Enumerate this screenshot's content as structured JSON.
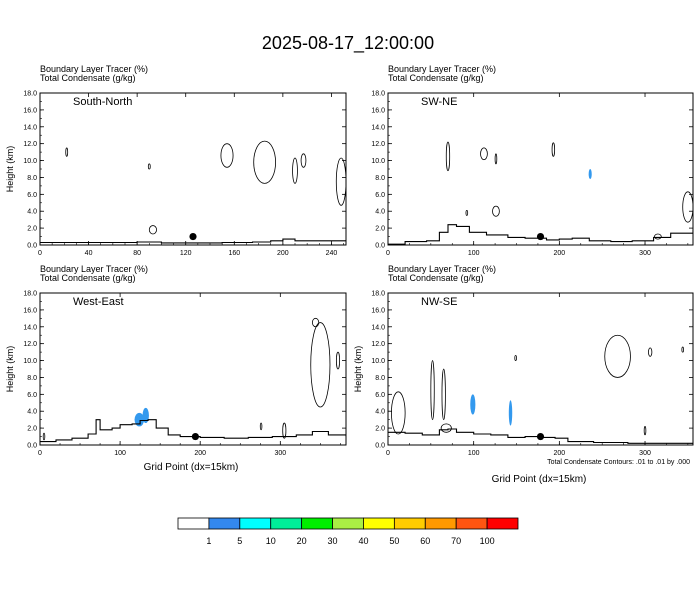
{
  "title": "2025-08-17_12:00:00",
  "footnote": "Total Condensate Contours: .01 to .01 by .000",
  "xlabel": "Grid Point (dx=15km)",
  "colors": {
    "fill": "#3399ee",
    "terrain": "#000000",
    "contour": "#000000",
    "scale": [
      "#ffffff",
      "#3388ee",
      "#00ffff",
      "#00ee99",
      "#00ee00",
      "#aaee44",
      "#ffff00",
      "#ffcc00",
      "#ff9900",
      "#ff5511",
      "#ff0000"
    ]
  },
  "colorbar": {
    "labels": [
      "1",
      "5",
      "10",
      "20",
      "30",
      "40",
      "50",
      "60",
      "70",
      "100"
    ]
  },
  "chart_data": [
    {
      "type": "contour",
      "label": "South-North",
      "line1": "Boundary Layer Tracer   (%)",
      "line2": "Total Condensate   (g/kg)",
      "ylabel": "Height (km)",
      "xlim": [
        0,
        252
      ],
      "ylim": [
        0,
        18
      ],
      "xticks": [
        0,
        40,
        80,
        120,
        160,
        200,
        240
      ],
      "yticks": [
        "0.0",
        "2.0",
        "4.0",
        "6.0",
        "8.0",
        "10.0",
        "12.0",
        "14.0",
        "16.0",
        "18.0"
      ],
      "marker": {
        "x": 126,
        "y": 1.0
      },
      "terrain": [
        [
          0,
          0.3
        ],
        [
          60,
          0.3
        ],
        [
          80,
          0.35
        ],
        [
          100,
          0.25
        ],
        [
          150,
          0.3
        ],
        [
          175,
          0.35
        ],
        [
          190,
          0.5
        ],
        [
          200,
          0.7
        ],
        [
          210,
          0.5
        ],
        [
          252,
          0.5
        ]
      ],
      "fills": [],
      "contours": [
        {
          "x": 22,
          "y": 11.0,
          "rx": 0.8,
          "ry": 0.5
        },
        {
          "x": 90,
          "y": 9.3,
          "rx": 0.8,
          "ry": 0.3
        },
        {
          "x": 93,
          "y": 1.8,
          "rx": 3,
          "ry": 0.5
        },
        {
          "x": 154,
          "y": 10.6,
          "rx": 5,
          "ry": 1.4
        },
        {
          "x": 185,
          "y": 9.8,
          "rx": 9,
          "ry": 2.5
        },
        {
          "x": 210,
          "y": 8.8,
          "rx": 2,
          "ry": 1.5
        },
        {
          "x": 217,
          "y": 10.0,
          "rx": 2,
          "ry": 0.8
        },
        {
          "x": 248,
          "y": 7.5,
          "rx": 4,
          "ry": 2.8
        }
      ]
    },
    {
      "type": "contour",
      "label": "SW-NE",
      "line1": "Boundary Layer Tracer   (%)",
      "line2": "Total Condensate   (g/kg)",
      "ylabel": "",
      "xlim": [
        0,
        356
      ],
      "ylim": [
        0,
        18
      ],
      "xticks": [
        0,
        100,
        200,
        300
      ],
      "yticks": [
        "0.0",
        "2.0",
        "4.0",
        "6.0",
        "8.0",
        "10.0",
        "12.0",
        "14.0",
        "16.0",
        "18.0"
      ],
      "marker": {
        "x": 178,
        "y": 1.0
      },
      "terrain": [
        [
          0,
          0.1
        ],
        [
          20,
          0.4
        ],
        [
          45,
          0.5
        ],
        [
          60,
          1.5
        ],
        [
          70,
          2.4
        ],
        [
          80,
          2.2
        ],
        [
          95,
          1.5
        ],
        [
          115,
          1.2
        ],
        [
          140,
          0.9
        ],
        [
          160,
          0.8
        ],
        [
          185,
          0.6
        ],
        [
          200,
          0.7
        ],
        [
          215,
          0.8
        ],
        [
          235,
          0.5
        ],
        [
          260,
          0.4
        ],
        [
          285,
          0.5
        ],
        [
          310,
          0.9
        ],
        [
          330,
          1.4
        ],
        [
          356,
          1.8
        ]
      ],
      "fills": [
        {
          "x": 236,
          "y": 8.4,
          "rx": 1.8,
          "ry": 0.6
        }
      ],
      "contours": [
        {
          "x": 70,
          "y": 10.5,
          "rx": 2,
          "ry": 1.7
        },
        {
          "x": 112,
          "y": 10.8,
          "rx": 4,
          "ry": 0.7
        },
        {
          "x": 126,
          "y": 10.2,
          "rx": 1,
          "ry": 0.6
        },
        {
          "x": 193,
          "y": 11.3,
          "rx": 1.5,
          "ry": 0.8
        },
        {
          "x": 126,
          "y": 4.0,
          "rx": 4,
          "ry": 0.6
        },
        {
          "x": 92,
          "y": 3.8,
          "rx": 1,
          "ry": 0.3
        },
        {
          "x": 350,
          "y": 4.5,
          "rx": 6,
          "ry": 1.8
        },
        {
          "x": 315,
          "y": 1.0,
          "rx": 4,
          "ry": 0.3
        }
      ]
    },
    {
      "type": "contour",
      "label": "West-East",
      "line1": "Boundary Layer Tracer   (%)",
      "line2": "Total Condensate   (g/kg)",
      "ylabel": "Height (km)",
      "xlim": [
        0,
        382
      ],
      "ylim": [
        0,
        18
      ],
      "xticks": [
        0,
        100,
        200,
        300
      ],
      "yticks": [
        "0.0",
        "2.0",
        "4.0",
        "6.0",
        "8.0",
        "10.0",
        "12.0",
        "14.0",
        "16.0",
        "18.0"
      ],
      "marker": {
        "x": 194,
        "y": 1.0
      },
      "terrain": [
        [
          0,
          0.4
        ],
        [
          20,
          0.6
        ],
        [
          40,
          0.8
        ],
        [
          60,
          1.3
        ],
        [
          70,
          3.0
        ],
        [
          75,
          1.8
        ],
        [
          90,
          2.0
        ],
        [
          100,
          2.4
        ],
        [
          115,
          2.5
        ],
        [
          125,
          2.9
        ],
        [
          135,
          3.0
        ],
        [
          145,
          2.0
        ],
        [
          160,
          1.2
        ],
        [
          175,
          1.0
        ],
        [
          200,
          0.9
        ],
        [
          230,
          0.8
        ],
        [
          260,
          0.9
        ],
        [
          290,
          1.0
        ],
        [
          320,
          1.2
        ],
        [
          340,
          1.6
        ],
        [
          360,
          1.2
        ],
        [
          382,
          1.0
        ]
      ],
      "fills": [
        {
          "x": 124,
          "y": 3.0,
          "rx": 6,
          "ry": 0.8
        },
        {
          "x": 132,
          "y": 3.5,
          "rx": 4,
          "ry": 0.9
        }
      ],
      "contours": [
        {
          "x": 350,
          "y": 9.5,
          "rx": 12,
          "ry": 5
        },
        {
          "x": 344,
          "y": 14.5,
          "rx": 4,
          "ry": 0.5
        },
        {
          "x": 372,
          "y": 10.0,
          "rx": 2,
          "ry": 1
        },
        {
          "x": 305,
          "y": 1.7,
          "rx": 2,
          "ry": 0.9
        },
        {
          "x": 276,
          "y": 2.2,
          "rx": 1,
          "ry": 0.4
        },
        {
          "x": 5,
          "y": 1.0,
          "rx": 1,
          "ry": 0.4
        }
      ]
    },
    {
      "type": "contour",
      "label": "NW-SE",
      "line1": "Boundary Layer Tracer   (%)",
      "line2": "Total Condensate   (g/kg)",
      "ylabel": "Height (km)",
      "xlim": [
        0,
        356
      ],
      "ylim": [
        0,
        18
      ],
      "xticks": [
        0,
        100,
        200,
        300
      ],
      "yticks": [
        "0.0",
        "2.0",
        "4.0",
        "6.0",
        "8.0",
        "10.0",
        "12.0",
        "14.0",
        "16.0",
        "18.0"
      ],
      "marker": {
        "x": 178,
        "y": 1.0
      },
      "terrain": [
        [
          0,
          1.5
        ],
        [
          20,
          1.4
        ],
        [
          40,
          1.2
        ],
        [
          60,
          1.8
        ],
        [
          70,
          1.9
        ],
        [
          80,
          1.5
        ],
        [
          100,
          1.3
        ],
        [
          120,
          1.2
        ],
        [
          140,
          0.9
        ],
        [
          160,
          1.0
        ],
        [
          180,
          0.9
        ],
        [
          195,
          0.8
        ],
        [
          210,
          0.4
        ],
        [
          240,
          0.3
        ],
        [
          280,
          0.2
        ],
        [
          356,
          0.1
        ]
      ],
      "fills": [
        {
          "x": 99,
          "y": 4.8,
          "rx": 3,
          "ry": 1.2
        },
        {
          "x": 143,
          "y": 3.8,
          "rx": 2,
          "ry": 1.5
        }
      ],
      "contours": [
        {
          "x": 12,
          "y": 3.8,
          "rx": 8,
          "ry": 2.5
        },
        {
          "x": 52,
          "y": 6.5,
          "rx": 2,
          "ry": 3.5
        },
        {
          "x": 65,
          "y": 6.0,
          "rx": 2,
          "ry": 3
        },
        {
          "x": 68,
          "y": 2.0,
          "rx": 6,
          "ry": 0.5
        },
        {
          "x": 268,
          "y": 10.5,
          "rx": 15,
          "ry": 2.5
        },
        {
          "x": 306,
          "y": 11.0,
          "rx": 2,
          "ry": 0.5
        },
        {
          "x": 344,
          "y": 11.3,
          "rx": 1,
          "ry": 0.3
        },
        {
          "x": 300,
          "y": 1.7,
          "rx": 1,
          "ry": 0.5
        },
        {
          "x": 149,
          "y": 10.3,
          "rx": 1,
          "ry": 0.3
        }
      ]
    }
  ]
}
